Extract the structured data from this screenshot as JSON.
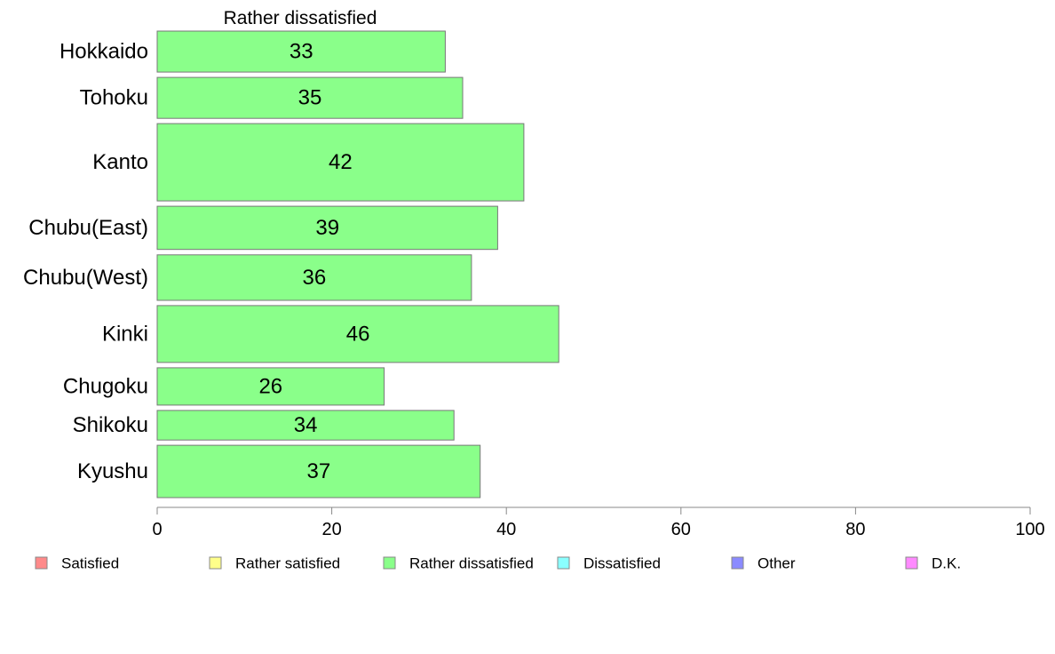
{
  "chart_data": {
    "type": "bar",
    "orientation": "horizontal",
    "title": "Rather dissatisfied",
    "categories": [
      "Hokkaido",
      "Tohoku",
      "Kanto",
      "Chubu(East)",
      "Chubu(West)",
      "Kinki",
      "Chugoku",
      "Shikoku",
      "Kyushu"
    ],
    "values": [
      33,
      35,
      42,
      39,
      36,
      46,
      26,
      34,
      37
    ],
    "value_labels": [
      "33",
      "35",
      "42",
      "39",
      "36",
      "46",
      "26",
      "34",
      "37"
    ],
    "bar_weights": [
      0.9,
      0.9,
      1.7,
      0.95,
      1.0,
      1.25,
      0.82,
      0.65,
      1.15
    ],
    "bar_color": "#8aff8a",
    "xlim": [
      0,
      100
    ],
    "xticks": [
      0,
      20,
      40,
      60,
      80,
      100
    ],
    "xtick_labels": [
      "0",
      "20",
      "40",
      "60",
      "80",
      "100"
    ],
    "grid": false,
    "legend_position": "bottom",
    "legend": [
      {
        "label": "Satisfied",
        "color": "#ff8a8a"
      },
      {
        "label": "Rather satisfied",
        "color": "#ffff8a"
      },
      {
        "label": "Rather dissatisfied",
        "color": "#8aff8a"
      },
      {
        "label": "Dissatisfied",
        "color": "#8affff"
      },
      {
        "label": "Other",
        "color": "#8a8aff"
      },
      {
        "label": "D.K.",
        "color": "#ff8aff"
      }
    ]
  }
}
